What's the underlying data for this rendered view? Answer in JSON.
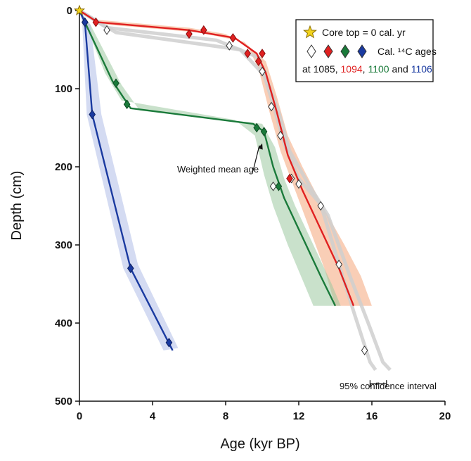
{
  "chart_data": {
    "type": "line",
    "xlabel": "Age (kyr BP)",
    "ylabel": "Depth (cm)",
    "xlim": [
      0,
      20
    ],
    "ylim": [
      500,
      0
    ],
    "x_ticks": [
      0,
      4,
      8,
      12,
      16,
      20
    ],
    "y_ticks": [
      0,
      100,
      200,
      300,
      400,
      500
    ],
    "grid": false,
    "legend_position": "top-right",
    "legend": {
      "core_top_label": "Core top = 0 cal. yr",
      "ages_label": "Cal. ¹⁴C ages",
      "cores_prefix": "at ",
      "core_names": [
        "1085",
        "1094",
        "1100",
        "1106"
      ],
      "core_colors": [
        "#111111",
        "#e02020",
        "#1a7a3a",
        "#1a3aa0"
      ],
      "separators": [
        ", ",
        ", ",
        " and ",
        ""
      ]
    },
    "core_top": {
      "label": "Core top = 0 cal. yr",
      "x": 0,
      "y": 0,
      "color": "#f2d31b"
    },
    "annotations": {
      "weighted_mean": "Weighted mean age",
      "confidence": "95% confidence interval"
    },
    "confidence_bar": {
      "x_start": 15.9,
      "x_end": 16.8,
      "y": 465
    },
    "weighted_mean_arrow": {
      "text_at": [
        9.5,
        205
      ],
      "points_to": [
        10.0,
        170
      ]
    },
    "series": [
      {
        "name": "1085",
        "color": "#ffffff",
        "stroke": "#333333",
        "band_color": "#cfcfcf",
        "ages": [
          [
            1.5,
            25
          ],
          [
            8.2,
            45
          ],
          [
            10.0,
            78
          ],
          [
            10.5,
            123
          ],
          [
            11.0,
            160
          ],
          [
            11.6,
            215
          ],
          [
            12.0,
            222
          ],
          [
            10.6,
            225
          ],
          [
            13.2,
            250
          ],
          [
            14.2,
            325
          ],
          [
            15.6,
            435
          ]
        ],
        "band_lines": [
          [
            [
              0,
              0
            ],
            [
              1.5,
              22
            ],
            [
              7.5,
              38
            ],
            [
              9.8,
              60
            ],
            [
              10.6,
              120
            ],
            [
              11.2,
              170
            ],
            [
              12.0,
              215
            ],
            [
              13.2,
              248
            ],
            [
              14.2,
              325
            ],
            [
              15.0,
              385
            ],
            [
              15.9,
              450
            ],
            [
              16.2,
              460
            ]
          ],
          [
            [
              0,
              0
            ],
            [
              2.0,
              28
            ],
            [
              8.8,
              50
            ],
            [
              10.2,
              85
            ],
            [
              10.9,
              130
            ],
            [
              11.5,
              180
            ],
            [
              12.6,
              225
            ],
            [
              13.6,
              262
            ],
            [
              14.8,
              340
            ],
            [
              15.8,
              400
            ],
            [
              16.6,
              450
            ],
            [
              17.0,
              460
            ]
          ]
        ]
      },
      {
        "name": "1094",
        "color": "#e02020",
        "stroke": "#8a1010",
        "band_color": "#f4a57a",
        "ages": [
          [
            0.9,
            15
          ],
          [
            6.0,
            30
          ],
          [
            6.8,
            25
          ],
          [
            8.4,
            35
          ],
          [
            9.2,
            55
          ],
          [
            9.8,
            65
          ],
          [
            10.0,
            55
          ],
          [
            11.5,
            215
          ]
        ],
        "mean": [
          [
            0,
            0
          ],
          [
            1,
            15
          ],
          [
            6,
            25
          ],
          [
            8.5,
            35
          ],
          [
            9.7,
            55
          ],
          [
            10.2,
            80
          ],
          [
            10.8,
            130
          ],
          [
            11.4,
            185
          ],
          [
            12.2,
            230
          ],
          [
            13.2,
            280
          ],
          [
            14.2,
            330
          ],
          [
            15.0,
            378
          ]
        ],
        "band": {
          "upper": [
            [
              0,
              0
            ],
            [
              1,
              12
            ],
            [
              6,
              22
            ],
            [
              8,
              30
            ],
            [
              9.2,
              45
            ],
            [
              9.8,
              75
            ],
            [
              10.4,
              130
            ],
            [
              11,
              180
            ],
            [
              11.8,
              230
            ],
            [
              12.6,
              280
            ],
            [
              13.4,
              330
            ],
            [
              14.0,
              378
            ]
          ],
          "lower": [
            [
              0,
              0
            ],
            [
              1.5,
              18
            ],
            [
              6.5,
              28
            ],
            [
              9,
              40
            ],
            [
              10.2,
              65
            ],
            [
              10.8,
              110
            ],
            [
              11.4,
              160
            ],
            [
              12.2,
              200
            ],
            [
              13.3,
              250
            ],
            [
              14.5,
              300
            ],
            [
              15.4,
              340
            ],
            [
              16.0,
              378
            ]
          ]
        }
      },
      {
        "name": "1100",
        "color": "#1a7a3a",
        "stroke": "#0d4a22",
        "band_color": "#9dc9a0",
        "ages": [
          [
            0.3,
            15
          ],
          [
            2.0,
            93
          ],
          [
            2.6,
            120
          ],
          [
            9.7,
            150
          ],
          [
            10.1,
            155
          ],
          [
            10.9,
            225
          ]
        ],
        "mean": [
          [
            0,
            0
          ],
          [
            0.3,
            15
          ],
          [
            1.8,
            90
          ],
          [
            2.8,
            125
          ],
          [
            9.5,
            145
          ],
          [
            10.1,
            155
          ],
          [
            10.6,
            200
          ],
          [
            11.2,
            240
          ],
          [
            12.2,
            290
          ],
          [
            13.2,
            340
          ],
          [
            14.0,
            378
          ]
        ],
        "band": {
          "upper": [
            [
              0,
              0
            ],
            [
              0.2,
              10
            ],
            [
              1.4,
              80
            ],
            [
              2.3,
              115
            ],
            [
              8.5,
              140
            ],
            [
              9.6,
              160
            ],
            [
              10.1,
              210
            ],
            [
              10.6,
              250
            ],
            [
              11.4,
              300
            ],
            [
              12.3,
              350
            ],
            [
              12.8,
              378
            ]
          ],
          "lower": [
            [
              0,
              0
            ],
            [
              0.6,
              18
            ],
            [
              2.3,
              95
            ],
            [
              3.3,
              128
            ],
            [
              10.0,
              145
            ],
            [
              10.7,
              175
            ],
            [
              11.2,
              215
            ],
            [
              11.8,
              250
            ],
            [
              12.8,
              300
            ],
            [
              13.8,
              350
            ],
            [
              14.3,
              378
            ]
          ]
        }
      },
      {
        "name": "1106",
        "color": "#1a3aa0",
        "stroke": "#0c1f60",
        "band_color": "#b0bde8",
        "ages": [
          [
            0.3,
            15
          ],
          [
            0.7,
            133
          ],
          [
            2.8,
            330
          ],
          [
            4.9,
            425
          ]
        ],
        "mean": [
          [
            0,
            0
          ],
          [
            0.3,
            15
          ],
          [
            0.7,
            133
          ],
          [
            2.8,
            330
          ],
          [
            5.1,
            435
          ]
        ],
        "band": {
          "upper": [
            [
              0,
              0
            ],
            [
              0.15,
              15
            ],
            [
              0.4,
              133
            ],
            [
              2.4,
              330
            ],
            [
              4.6,
              435
            ]
          ],
          "lower": [
            [
              0,
              0
            ],
            [
              0.6,
              18
            ],
            [
              1.2,
              133
            ],
            [
              3.2,
              325
            ],
            [
              5.4,
              432
            ]
          ]
        }
      }
    ]
  }
}
